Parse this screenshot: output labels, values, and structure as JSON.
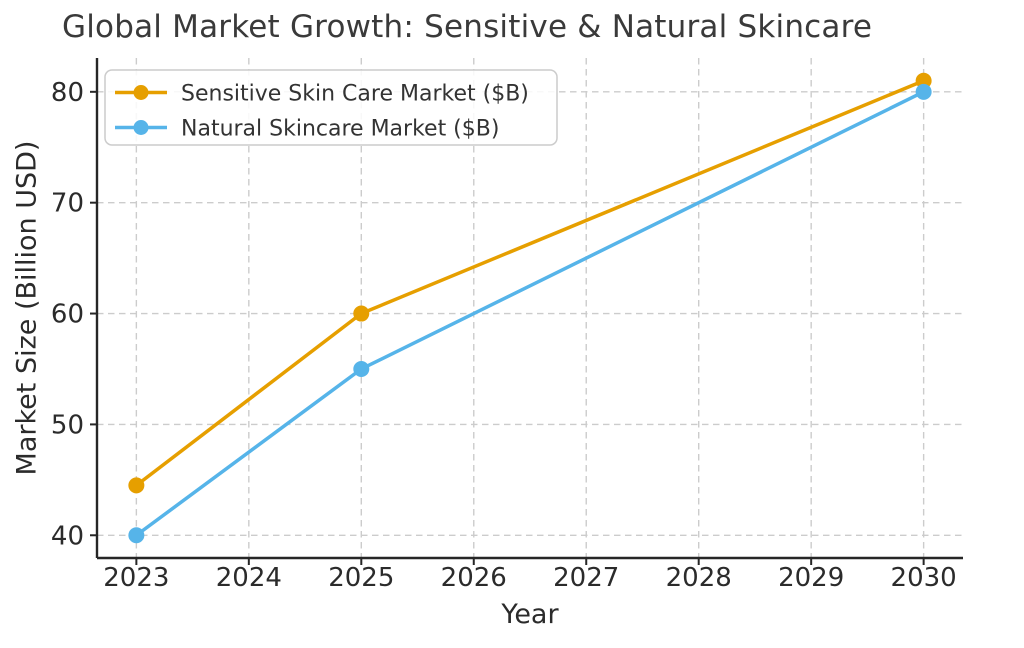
{
  "chart_data": {
    "type": "line",
    "title": "Global Market Growth: Sensitive & Natural Skincare",
    "xlabel": "Year",
    "ylabel": "Market Size (Billion USD)",
    "x_tick_labels": [
      "2023",
      "2024",
      "2025",
      "2026",
      "2027",
      "2028",
      "2029",
      "2030"
    ],
    "x_tick_values": [
      2023,
      2024,
      2025,
      2026,
      2027,
      2028,
      2029,
      2030
    ],
    "y_tick_labels": [
      "40",
      "50",
      "60",
      "70",
      "80"
    ],
    "y_tick_values": [
      40,
      50,
      60,
      70,
      80
    ],
    "xlim": [
      2022.65,
      2030.35
    ],
    "ylim": [
      37.95,
      83.05
    ],
    "grid": true,
    "grid_style": "dashed",
    "legend_position": "upper-left",
    "series": [
      {
        "name": "Sensitive Skin Care Market ($B)",
        "color": "#E69F00",
        "x": [
          2023,
          2025,
          2030
        ],
        "values": [
          44.5,
          60,
          81
        ]
      },
      {
        "name": "Natural Skincare Market ($B)",
        "color": "#56B4E9",
        "x": [
          2023,
          2025,
          2030
        ],
        "values": [
          40,
          55,
          80
        ]
      }
    ],
    "colors": {
      "grid": "#cccccc",
      "spine": "#262626",
      "tick_label": "#2b2b2b",
      "title": "#3a3a3a",
      "legend_border": "#cccccc",
      "legend_text": "#333333",
      "background": "#ffffff"
    }
  }
}
